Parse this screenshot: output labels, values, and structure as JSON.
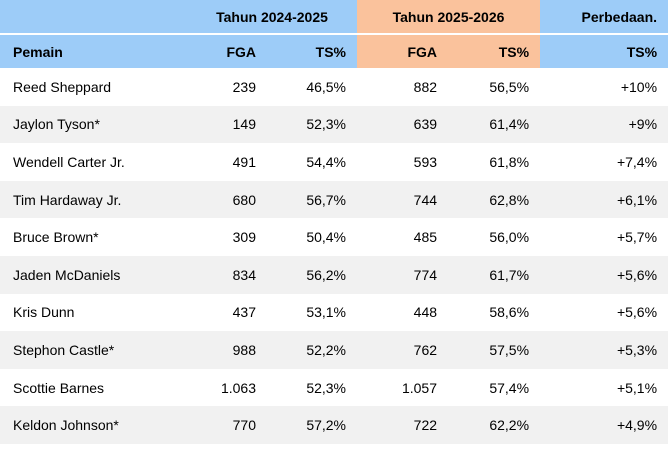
{
  "header": {
    "seasons": [
      {
        "label": "Tahun 2024-2025"
      },
      {
        "label": "Tahun 2025-2026"
      }
    ],
    "difference_label": "Perbedaan.",
    "columns": [
      "Pemain",
      "FGA",
      "TS%",
      "FGA",
      "TS%",
      "TS%"
    ]
  },
  "rows": [
    {
      "player": "Reed Sheppard",
      "values": [
        "239",
        "46,5%",
        "882",
        "56,5%",
        "+10%"
      ]
    },
    {
      "player": "Jaylon Tyson*",
      "values": [
        "149",
        "52,3%",
        "639",
        "61,4%",
        "+9%"
      ]
    },
    {
      "player": "Wendell Carter Jr.",
      "values": [
        "491",
        "54,4%",
        "593",
        "61,8%",
        "+7,4%"
      ]
    },
    {
      "player": "Tim Hardaway Jr.",
      "values": [
        "680",
        "56,7%",
        "744",
        "62,8%",
        "+6,1%"
      ]
    },
    {
      "player": "Bruce Brown*",
      "values": [
        "309",
        "50,4%",
        "485",
        "56,0%",
        "+5,7%"
      ]
    },
    {
      "player": "Jaden McDaniels",
      "values": [
        "834",
        "56,2%",
        "774",
        "61,7%",
        "+5,6%"
      ]
    },
    {
      "player": "Kris Dunn",
      "values": [
        "437",
        "53,1%",
        "448",
        "58,6%",
        "+5,6%"
      ]
    },
    {
      "player": "Stephon Castle*",
      "values": [
        "988",
        "52,2%",
        "762",
        "57,5%",
        "+5,3%"
      ]
    },
    {
      "player": "Scottie Barnes",
      "values": [
        "1.063",
        "52,3%",
        "1.057",
        "57,4%",
        "+5,1%"
      ]
    },
    {
      "player": "Keldon Johnson*",
      "values": [
        "770",
        "57,2%",
        "722",
        "62,2%",
        "+4,9%"
      ]
    }
  ],
  "colors": {
    "header_blue": "#9dccf8",
    "header_orange": "#fac29c",
    "row_band": "#f1f1f1",
    "text": "#000000"
  }
}
